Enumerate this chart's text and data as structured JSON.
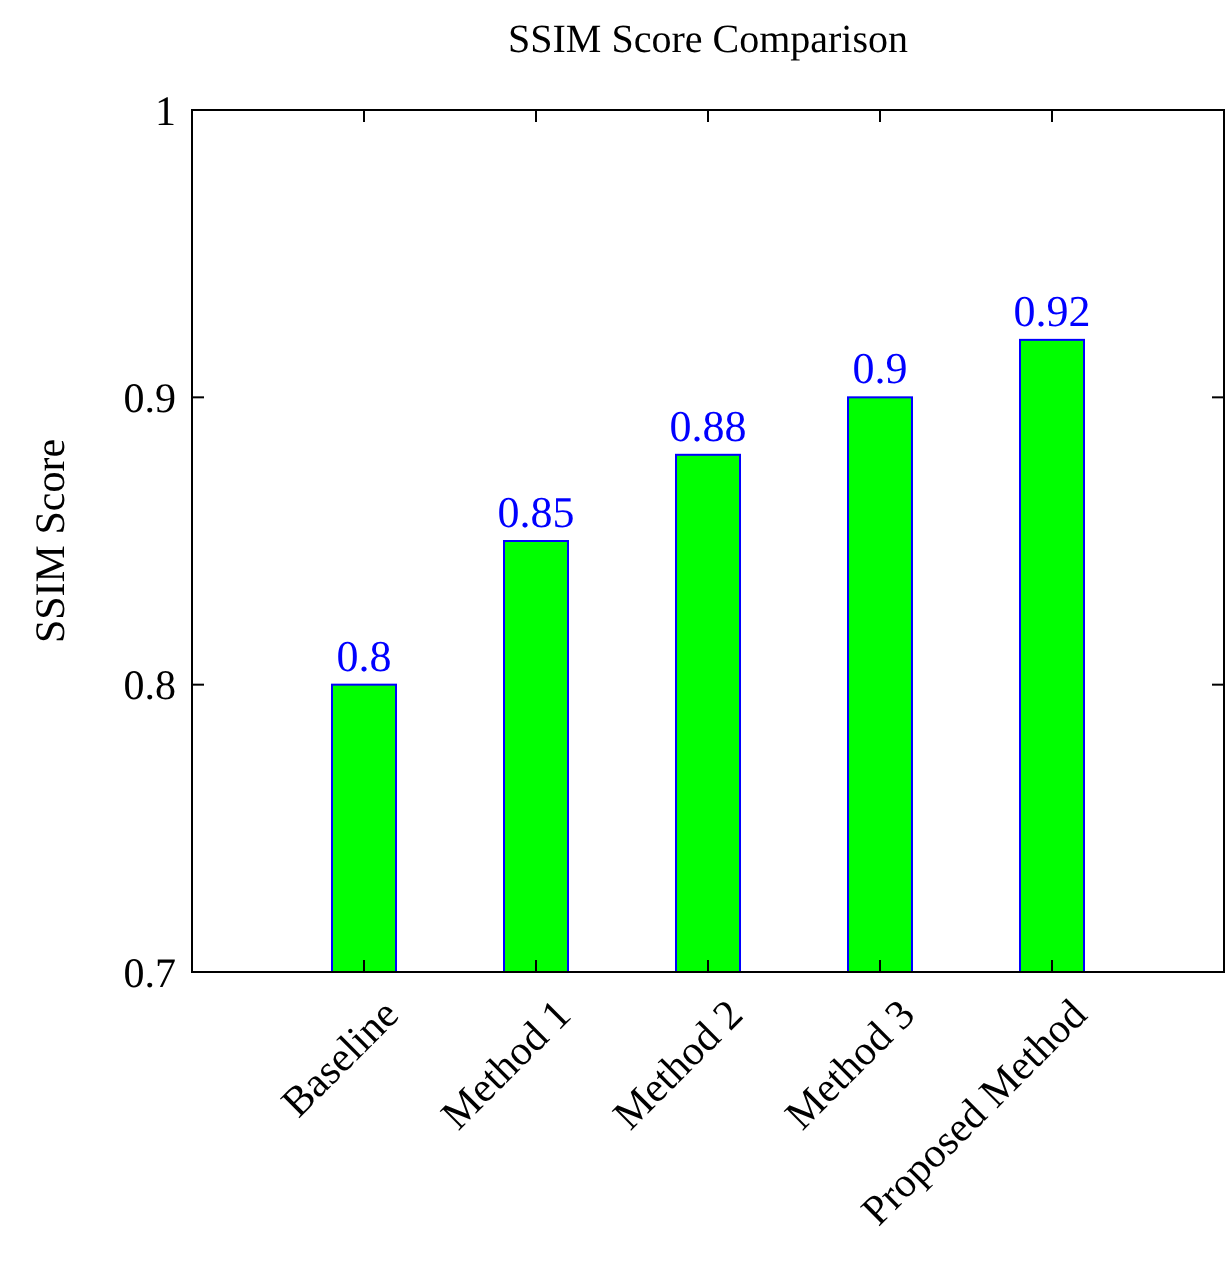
{
  "chart_data": {
    "type": "bar",
    "title": "SSIM Score Comparison",
    "ylabel": "SSIM Score",
    "categories": [
      "Baseline",
      "Method 1",
      "Method 2",
      "Method 3",
      "Proposed Method"
    ],
    "values": [
      0.8,
      0.85,
      0.88,
      0.9,
      0.92
    ],
    "color": "#00ff00",
    "ylim": [
      0.7,
      1
    ],
    "yticks": [
      0.7,
      0.8,
      0.9,
      1
    ],
    "data_labels": true,
    "grid": false
  }
}
